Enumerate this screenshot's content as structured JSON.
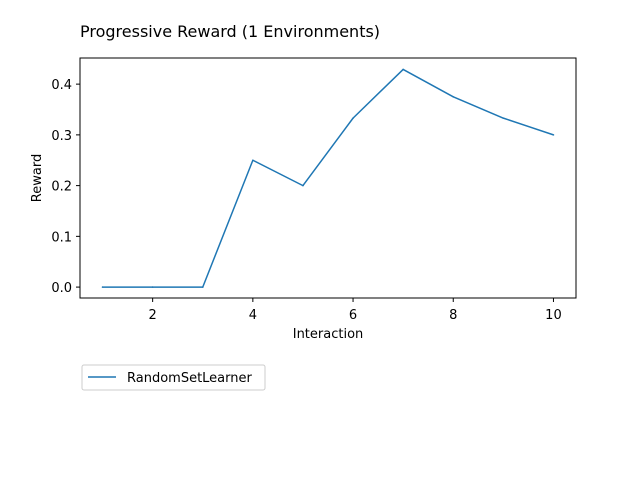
{
  "chart_data": {
    "type": "line",
    "title": "Progressive Reward (1 Environments)",
    "xlabel": "Interaction",
    "ylabel": "Reward",
    "xlim": [
      0.55,
      10.45
    ],
    "ylim": [
      -0.0215,
      0.4515
    ],
    "x_ticks": [
      2,
      4,
      6,
      8,
      10
    ],
    "x_tick_labels": [
      "2",
      "4",
      "6",
      "8",
      "10"
    ],
    "y_ticks": [
      0.0,
      0.1,
      0.2,
      0.3,
      0.4
    ],
    "y_tick_labels": [
      "0.0",
      "0.1",
      "0.2",
      "0.3",
      "0.4"
    ],
    "grid": false,
    "legend_position": "below-left",
    "series": [
      {
        "name": "RandomSetLearner",
        "color": "#1f77b4",
        "x": [
          1,
          2,
          3,
          4,
          5,
          6,
          7,
          8,
          9,
          10
        ],
        "values": [
          0.0,
          0.0,
          0.0,
          0.25,
          0.2,
          0.333,
          0.429,
          0.375,
          0.333,
          0.3
        ]
      }
    ]
  }
}
